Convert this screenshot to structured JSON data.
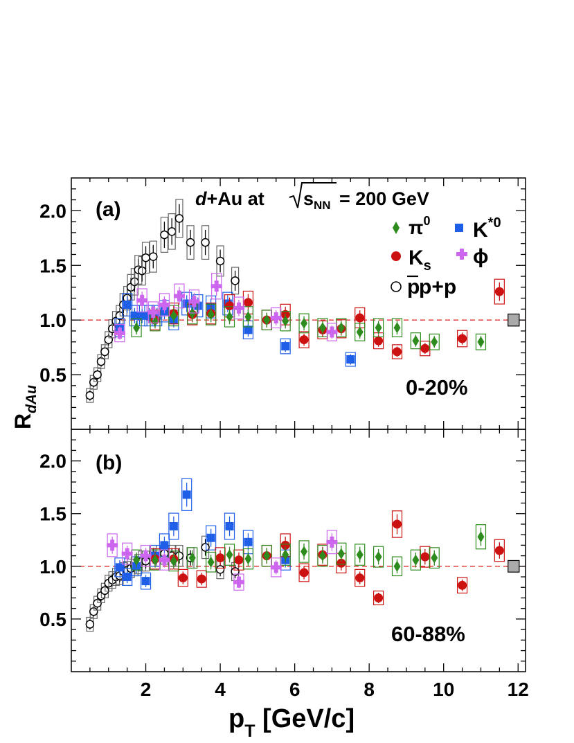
{
  "chart_data": {
    "type": "scatter",
    "title_prefix": "d",
    "title_main": "+Au at",
    "title_energy": "= 200 GeV",
    "title_sqrt_symbol": "s",
    "title_sqrt_sub": "NN",
    "xlabel_main": "p",
    "xlabel_sub": "T",
    "xlabel_unit": " [GeV/c]",
    "ylabel_main": "R",
    "ylabel_sub": "dAu",
    "xlim": [
      0,
      12.2
    ],
    "xticks": [
      "2",
      "4",
      "6",
      "8",
      "10",
      "12"
    ],
    "ylim": [
      0,
      2.3
    ],
    "yticks": [
      "0.5",
      "1.0",
      "1.5",
      "2.0"
    ],
    "reference_line": 1.0,
    "normalization_box_height": 0.11,
    "legend": [
      {
        "label": "π",
        "sup": "0",
        "color": "#2e8b1e",
        "marker": "diamond"
      },
      {
        "label": "K",
        "sup": "*0",
        "color": "#1f5fe8",
        "marker": "square"
      },
      {
        "label": "K",
        "sub": "s",
        "color": "#cc1111",
        "marker": "circle"
      },
      {
        "label": "ϕ",
        "color": "#cc66ee",
        "marker": "cross"
      },
      {
        "label": "p+p",
        "overline": "p",
        "color": "#000000",
        "marker": "open-circle"
      }
    ],
    "panels": [
      {
        "label": "(a)",
        "centrality": "0-20%",
        "series": [
          {
            "name": "p̄+p",
            "marker": "open-circle",
            "color": "#000000",
            "points": [
              [
                0.5,
                0.31
              ],
              [
                0.6,
                0.43
              ],
              [
                0.7,
                0.5
              ],
              [
                0.8,
                0.62
              ],
              [
                0.9,
                0.71
              ],
              [
                1.0,
                0.82
              ],
              [
                1.1,
                0.92
              ],
              [
                1.2,
                0.99
              ],
              [
                1.3,
                1.04
              ],
              [
                1.4,
                1.14
              ],
              [
                1.5,
                1.2
              ],
              [
                1.6,
                1.3
              ],
              [
                1.7,
                1.35
              ],
              [
                1.8,
                1.46
              ],
              [
                1.9,
                1.45
              ],
              [
                2.0,
                1.57
              ],
              [
                2.2,
                1.58
              ],
              [
                2.5,
                1.78
              ],
              [
                2.7,
                1.81
              ],
              [
                2.9,
                1.93
              ],
              [
                3.2,
                1.71
              ],
              [
                3.6,
                1.71
              ],
              [
                4.0,
                1.54
              ],
              [
                4.4,
                1.36
              ]
            ]
          },
          {
            "name": "K*0",
            "marker": "square",
            "color": "#1f5fe8",
            "points": [
              [
                1.3,
                0.93
              ],
              [
                1.5,
                1.14
              ],
              [
                1.7,
                1.04
              ],
              [
                1.9,
                1.04
              ],
              [
                2.1,
                1.04
              ],
              [
                2.3,
                1.04
              ],
              [
                2.5,
                1.08
              ],
              [
                2.75,
                1.0
              ],
              [
                3.1,
                1.15
              ],
              [
                3.4,
                1.13
              ],
              [
                3.75,
                1.12
              ],
              [
                4.2,
                1.15
              ],
              [
                4.75,
                0.91
              ],
              [
                5.75,
                0.76
              ],
              [
                7.5,
                0.64
              ]
            ]
          },
          {
            "name": "Ks",
            "marker": "circle",
            "color": "#cc1111",
            "points": [
              [
                2.25,
                1.0
              ],
              [
                2.75,
                1.06
              ],
              [
                3.25,
                1.05
              ],
              [
                3.75,
                1.06
              ],
              [
                4.25,
                1.13
              ],
              [
                4.75,
                1.16
              ],
              [
                5.25,
                1.0
              ],
              [
                5.75,
                1.05
              ],
              [
                6.25,
                0.82
              ],
              [
                6.75,
                0.91
              ],
              [
                7.25,
                0.92
              ],
              [
                7.75,
                1.02
              ],
              [
                8.25,
                0.81
              ],
              [
                8.75,
                0.71
              ],
              [
                9.5,
                0.74
              ],
              [
                10.5,
                0.83
              ],
              [
                11.5,
                1.26
              ]
            ]
          },
          {
            "name": "π0",
            "marker": "diamond",
            "color": "#2e8b1e",
            "points": [
              [
                1.75,
                0.93
              ],
              [
                2.25,
                0.99
              ],
              [
                2.75,
                1.04
              ],
              [
                3.25,
                1.06
              ],
              [
                3.75,
                1.05
              ],
              [
                4.25,
                1.03
              ],
              [
                4.75,
                1.03
              ],
              [
                5.25,
                1.0
              ],
              [
                5.75,
                0.99
              ],
              [
                6.25,
                0.97
              ],
              [
                6.75,
                0.93
              ],
              [
                7.25,
                0.93
              ],
              [
                7.75,
                0.89
              ],
              [
                8.25,
                0.93
              ],
              [
                8.75,
                0.93
              ],
              [
                9.25,
                0.81
              ],
              [
                9.75,
                0.8
              ],
              [
                11.0,
                0.8
              ]
            ]
          },
          {
            "name": "ϕ",
            "marker": "cross",
            "color": "#cc66ee",
            "points": [
              [
                1.3,
                0.88
              ],
              [
                1.9,
                1.18
              ],
              [
                2.2,
                1.07
              ],
              [
                2.5,
                1.14
              ],
              [
                2.9,
                1.22
              ],
              [
                3.3,
                1.17
              ],
              [
                3.9,
                1.31
              ],
              [
                4.5,
                1.11
              ],
              [
                5.5,
                1.02
              ],
              [
                7.0,
                0.89
              ]
            ]
          }
        ]
      },
      {
        "label": "(b)",
        "centrality": "60-88%",
        "series": [
          {
            "name": "p̄+p",
            "marker": "open-circle",
            "color": "#000000",
            "points": [
              [
                0.5,
                0.45
              ],
              [
                0.6,
                0.57
              ],
              [
                0.7,
                0.65
              ],
              [
                0.8,
                0.72
              ],
              [
                0.9,
                0.77
              ],
              [
                1.0,
                0.84
              ],
              [
                1.1,
                0.87
              ],
              [
                1.2,
                0.9
              ],
              [
                1.3,
                0.91
              ],
              [
                1.4,
                0.95
              ],
              [
                1.5,
                0.96
              ],
              [
                1.6,
                0.98
              ],
              [
                1.7,
                1.0
              ],
              [
                1.8,
                1.02
              ],
              [
                1.9,
                1.05
              ],
              [
                2.0,
                1.05
              ],
              [
                2.2,
                1.1
              ],
              [
                2.5,
                1.12
              ],
              [
                2.7,
                1.1
              ],
              [
                2.9,
                1.1
              ],
              [
                3.2,
                1.08
              ],
              [
                3.6,
                1.18
              ],
              [
                4.0,
                0.97
              ],
              [
                4.4,
                0.95
              ]
            ]
          },
          {
            "name": "K*0",
            "marker": "square",
            "color": "#1f5fe8",
            "points": [
              [
                1.3,
                0.99
              ],
              [
                1.5,
                0.9
              ],
              [
                1.75,
                1.0
              ],
              [
                2.0,
                0.86
              ],
              [
                2.25,
                1.1
              ],
              [
                2.5,
                1.2
              ],
              [
                2.75,
                1.38
              ],
              [
                3.1,
                1.68
              ],
              [
                3.75,
                1.27
              ],
              [
                4.25,
                1.38
              ],
              [
                4.75,
                1.23
              ],
              [
                5.75,
                1.06
              ]
            ]
          },
          {
            "name": "Ks",
            "marker": "circle",
            "color": "#cc1111",
            "points": [
              [
                2.25,
                1.07
              ],
              [
                2.75,
                1.07
              ],
              [
                3.0,
                0.89
              ],
              [
                3.5,
                0.88
              ],
              [
                4.0,
                1.08
              ],
              [
                4.5,
                1.06
              ],
              [
                5.25,
                1.1
              ],
              [
                5.75,
                1.2
              ],
              [
                6.25,
                0.94
              ],
              [
                6.75,
                1.11
              ],
              [
                7.25,
                1.03
              ],
              [
                7.75,
                0.89
              ],
              [
                8.25,
                0.7
              ],
              [
                8.75,
                1.4
              ],
              [
                9.5,
                1.09
              ],
              [
                10.5,
                0.82
              ],
              [
                11.5,
                1.15
              ]
            ]
          },
          {
            "name": "π0",
            "marker": "diamond",
            "color": "#2e8b1e",
            "points": [
              [
                1.75,
                1.06
              ],
              [
                2.25,
                1.06
              ],
              [
                2.75,
                1.05
              ],
              [
                3.25,
                1.08
              ],
              [
                3.75,
                1.04
              ],
              [
                4.25,
                1.11
              ],
              [
                4.75,
                1.07
              ],
              [
                5.25,
                1.1
              ],
              [
                5.75,
                1.11
              ],
              [
                6.25,
                1.14
              ],
              [
                6.75,
                1.1
              ],
              [
                7.25,
                1.12
              ],
              [
                7.75,
                1.11
              ],
              [
                8.25,
                1.09
              ],
              [
                8.75,
                1.0
              ],
              [
                9.25,
                1.06
              ],
              [
                9.75,
                1.08
              ],
              [
                11.0,
                1.28
              ]
            ]
          },
          {
            "name": "ϕ",
            "marker": "cross",
            "color": "#cc66ee",
            "points": [
              [
                1.1,
                1.2
              ],
              [
                1.5,
                1.12
              ],
              [
                2.0,
                1.1
              ],
              [
                2.5,
                1.06
              ],
              [
                4.5,
                0.85
              ],
              [
                5.5,
                0.99
              ],
              [
                7.0,
                1.23
              ]
            ]
          }
        ]
      }
    ]
  }
}
